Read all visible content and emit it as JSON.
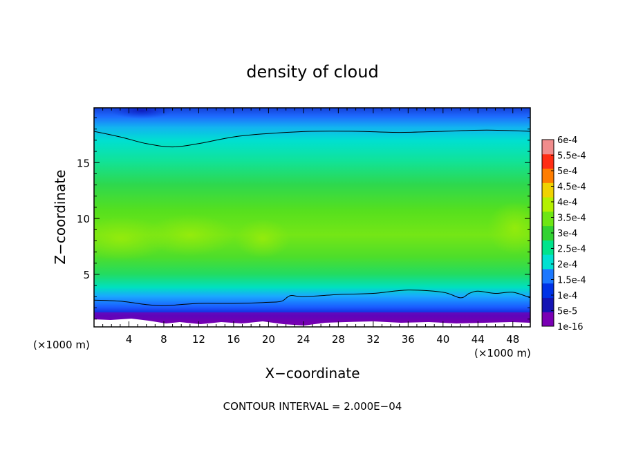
{
  "chart_data": {
    "type": "heatmap",
    "title": "density of cloud",
    "xlabel": "X−coordinate",
    "ylabel": "Z−coordinate",
    "x_unit": "(×1000 m)",
    "xlim": [
      0,
      50
    ],
    "ylim": [
      0.3,
      19.9
    ],
    "x_ticks": [
      "4",
      "8",
      "12",
      "16",
      "20",
      "24",
      "28",
      "32",
      "36",
      "40",
      "44",
      "48"
    ],
    "y_ticks": [
      "5",
      "10",
      "15"
    ],
    "colorbar_labels": [
      "1e-16",
      "5e-5",
      "1e-4",
      "1.5e-4",
      "2e-4",
      "2.5e-4",
      "3e-4",
      "3.5e-4",
      "4e-4",
      "4.5e-4",
      "5e-4",
      "5.5e-4",
      "6e-4"
    ],
    "colors": [
      "#7a00b4",
      "#1414b4",
      "#0032e6",
      "#1b78ff",
      "#00e1d2",
      "#00e38c",
      "#32d232",
      "#6ee614",
      "#b4f000",
      "#f0d200",
      "#ff7d00",
      "#ff2d14",
      "#f08c8c"
    ],
    "footer": "CONTOUR INTERVAL = 2.000E−04",
    "contour_top": {
      "x": [
        0,
        3,
        6,
        9,
        12,
        16,
        20,
        25,
        30,
        35,
        40,
        45,
        50
      ],
      "z": [
        17.8,
        17.3,
        16.7,
        16.4,
        16.7,
        17.3,
        17.6,
        17.8,
        17.8,
        17.7,
        17.8,
        17.9,
        17.8
      ]
    },
    "contour_bottom": {
      "x": [
        0,
        3,
        6,
        8,
        12,
        16,
        20,
        21.5,
        22.5,
        24,
        28,
        32,
        36,
        40,
        42,
        43,
        44,
        46,
        48,
        50
      ],
      "z": [
        2.7,
        2.6,
        2.3,
        2.2,
        2.4,
        2.4,
        2.5,
        2.6,
        3.1,
        3.0,
        3.2,
        3.3,
        3.6,
        3.4,
        2.9,
        3.3,
        3.5,
        3.3,
        3.4,
        2.9
      ]
    }
  }
}
